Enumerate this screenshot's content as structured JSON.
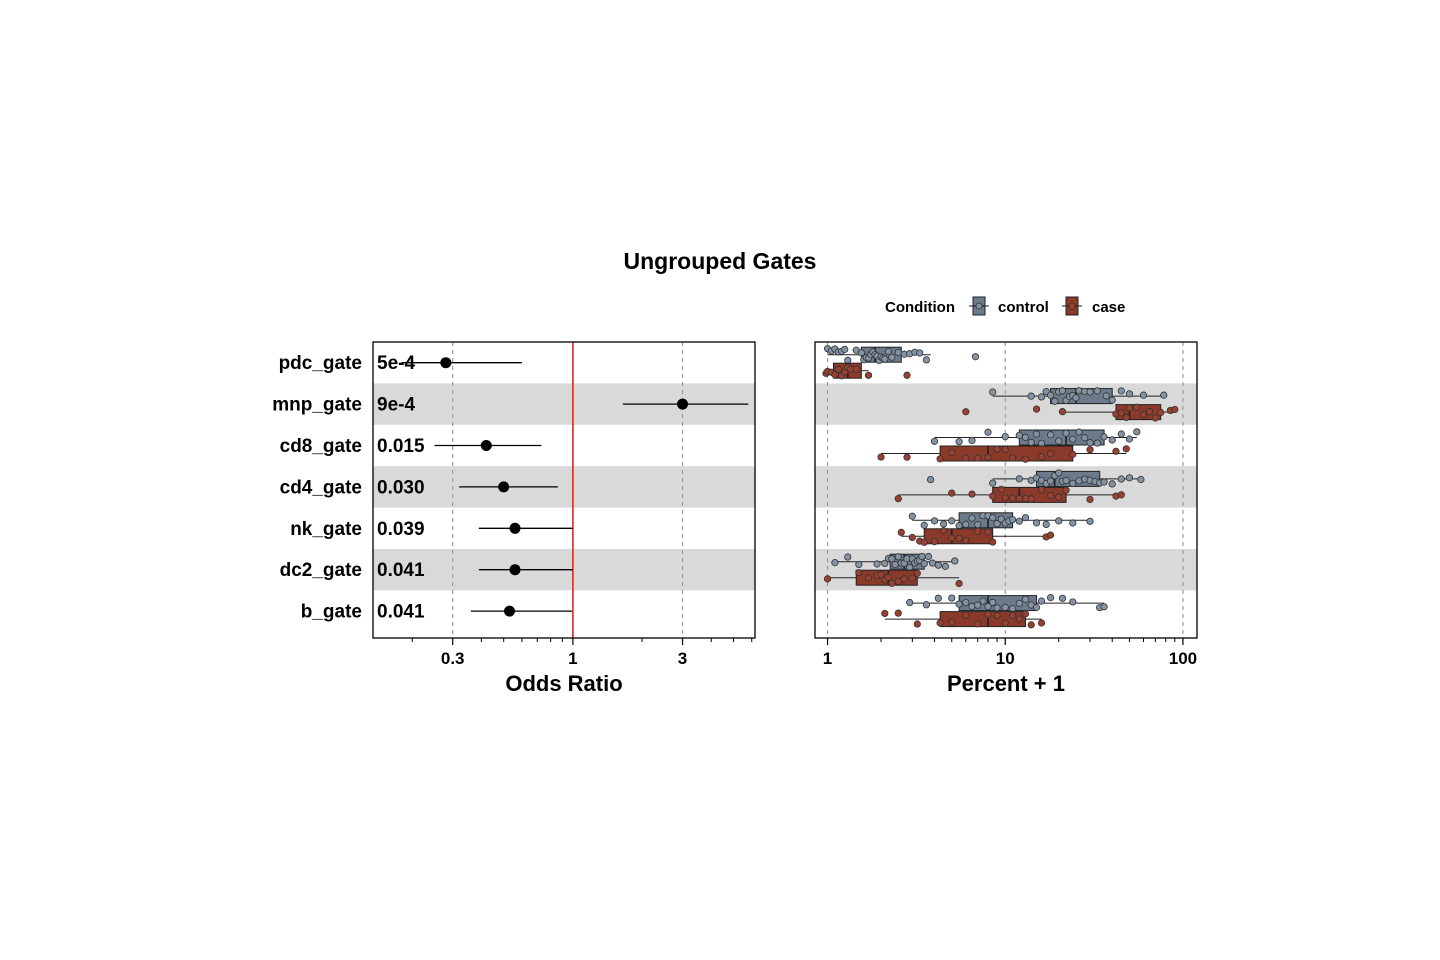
{
  "title": "Ungrouped Gates",
  "legend": {
    "title": "Condition",
    "items": [
      {
        "label": "control",
        "color": "#6b7b8c"
      },
      {
        "label": "case",
        "color": "#8b3a2a"
      }
    ]
  },
  "colors": {
    "control_fill": "#6b7b8c",
    "control_point": "#8393a4",
    "case_fill": "#8b3a2a",
    "case_point": "#9a4030",
    "reference_line": "#e8231d",
    "band": "#d9d9d9"
  },
  "chart_data": [
    {
      "type": "forest",
      "xlabel": "Odds Ratio",
      "x_scale": "log",
      "xlim": [
        0.135,
        6.2
      ],
      "xticks": [
        {
          "value": 0.3,
          "label": "0.3"
        },
        {
          "value": 1,
          "label": "1"
        },
        {
          "value": 3,
          "label": "3"
        }
      ],
      "reference_value": 1,
      "categories": [
        "pdc_gate",
        "mnp_gate",
        "cd8_gate",
        "cd4_gate",
        "nk_gate",
        "dc2_gate",
        "b_gate"
      ],
      "pvalues": [
        "5e-4",
        "9e-4",
        "0.015",
        "0.030",
        "0.039",
        "0.041",
        "0.041"
      ],
      "estimates": [
        0.28,
        3.0,
        0.42,
        0.5,
        0.56,
        0.56,
        0.53
      ],
      "ci_low": [
        0.18,
        1.65,
        0.25,
        0.32,
        0.39,
        0.39,
        0.36
      ],
      "ci_high": [
        0.6,
        5.8,
        0.73,
        0.86,
        1.0,
        1.0,
        0.99
      ],
      "band_rows": [
        "mnp_gate",
        "cd4_gate",
        "dc2_gate"
      ],
      "grid": true
    },
    {
      "type": "boxplot",
      "xlabel": "Percent + 1",
      "x_scale": "log",
      "xlim": [
        0.85,
        120
      ],
      "xticks": [
        {
          "value": 1,
          "label": "1"
        },
        {
          "value": 10,
          "label": "10"
        },
        {
          "value": 100,
          "label": "100"
        }
      ],
      "categories": [
        "pdc_gate",
        "mnp_gate",
        "cd8_gate",
        "cd4_gate",
        "nk_gate",
        "dc2_gate",
        "b_gate"
      ],
      "series": [
        {
          "name": "control",
          "boxes": [
            {
              "min": 1.0,
              "q1": 1.55,
              "median": 1.85,
              "q3": 2.6,
              "max": 3.8
            },
            {
              "min": 8.5,
              "q1": 18,
              "median": 25,
              "q3": 40,
              "max": 78
            },
            {
              "min": 4.0,
              "q1": 12,
              "median": 22,
              "q3": 36,
              "max": 55
            },
            {
              "min": 8.5,
              "q1": 15,
              "median": 19,
              "q3": 34,
              "max": 58
            },
            {
              "min": 3.0,
              "q1": 5.5,
              "median": 8,
              "q3": 11,
              "max": 30
            },
            {
              "min": 1.1,
              "q1": 2.25,
              "median": 2.7,
              "q3": 3.5,
              "max": 5.2
            },
            {
              "min": 2.9,
              "q1": 5.5,
              "median": 8,
              "q3": 15,
              "max": 36
            }
          ],
          "points": [
            [
              1.0,
              1.05,
              1.1,
              1.15,
              1.2,
              1.25,
              1.3,
              1.45,
              1.55,
              1.6,
              1.65,
              1.7,
              1.75,
              1.8,
              1.85,
              1.9,
              1.95,
              2.0,
              2.05,
              2.1,
              2.2,
              2.3,
              2.5,
              2.7,
              2.9,
              3.1,
              3.3,
              3.6,
              6.8
            ],
            [
              8.5,
              14,
              16,
              17,
              18,
              19,
              20,
              21,
              22,
              23,
              24,
              25,
              26,
              28,
              30,
              33,
              37,
              40,
              45,
              50,
              60,
              78
            ],
            [
              4.0,
              5.5,
              6.5,
              8,
              10,
              12,
              13,
              14,
              15,
              16,
              18,
              20,
              22,
              24,
              26,
              28,
              30,
              33,
              36,
              40,
              45,
              50,
              55
            ],
            [
              3.8,
              8.5,
              12,
              14,
              15,
              16,
              17,
              18,
              19,
              20,
              21,
              22,
              24,
              26,
              28,
              30,
              32,
              34,
              36,
              40,
              45,
              50,
              58
            ],
            [
              3.0,
              3.5,
              4.0,
              4.5,
              5.0,
              5.5,
              6.0,
              6.5,
              7.0,
              7.5,
              8.0,
              8.5,
              9.0,
              9.5,
              10,
              10.5,
              11,
              12,
              13,
              15,
              17,
              20,
              24,
              30
            ],
            [
              1.1,
              1.3,
              1.5,
              1.9,
              2.1,
              2.2,
              2.3,
              2.4,
              2.5,
              2.6,
              2.7,
              2.8,
              2.9,
              3.0,
              3.1,
              3.2,
              3.3,
              3.4,
              3.5,
              3.7,
              3.9,
              4.2,
              4.6,
              5.2
            ],
            [
              2.9,
              3.6,
              4.2,
              5.0,
              5.5,
              6.0,
              6.5,
              7.0,
              7.5,
              8.0,
              8.5,
              9.0,
              10,
              11,
              12,
              13,
              14,
              15,
              16,
              18,
              21,
              24,
              34,
              36
            ]
          ]
        },
        {
          "name": "case",
          "boxes": [
            {
              "min": 0.98,
              "q1": 1.08,
              "median": 1.3,
              "q3": 1.55,
              "max": 1.7
            },
            {
              "min": 21,
              "q1": 42,
              "median": 50,
              "q3": 75,
              "max": 90
            },
            {
              "min": 2.0,
              "q1": 4.3,
              "median": 8,
              "q3": 24,
              "max": 48
            },
            {
              "min": 2.5,
              "q1": 8.5,
              "median": 12,
              "q3": 22,
              "max": 45
            },
            {
              "min": 2.6,
              "q1": 3.5,
              "median": 5,
              "q3": 8.5,
              "max": 18
            },
            {
              "min": 1.0,
              "q1": 1.45,
              "median": 2.2,
              "q3": 3.2,
              "max": 5.5
            },
            {
              "min": 2.1,
              "q1": 4.3,
              "median": 8,
              "q3": 13,
              "max": 16
            }
          ],
          "points": [
            [
              0.98,
              1.0,
              1.05,
              1.1,
              1.15,
              1.2,
              1.25,
              1.3,
              1.35,
              1.45,
              1.7,
              2.8
            ],
            [
              6,
              15,
              21,
              42,
              45,
              48,
              50,
              55,
              60,
              65,
              70,
              75,
              85,
              90
            ],
            [
              2.0,
              2.8,
              4.3,
              5,
              6,
              7,
              8,
              9,
              10,
              11,
              13,
              16,
              18,
              24,
              30,
              42,
              48
            ],
            [
              2.5,
              5,
              6.5,
              8.5,
              9.5,
              10,
              11,
              12,
              13,
              14,
              16,
              18,
              20,
              22,
              30,
              42,
              45
            ],
            [
              2.6,
              3.0,
              3.3,
              3.5,
              4.0,
              4.5,
              5.0,
              5.5,
              6.0,
              7.0,
              8.0,
              8.5,
              17,
              18
            ],
            [
              1.0,
              1.5,
              1.7,
              1.9,
              2.0,
              2.1,
              2.2,
              2.3,
              2.5,
              2.7,
              3.0,
              3.2,
              5.5
            ],
            [
              2.1,
              2.5,
              3.2,
              4.3,
              5,
              6,
              7,
              8,
              9,
              10,
              11,
              12,
              13,
              14,
              16
            ]
          ]
        }
      ],
      "band_rows": [
        "mnp_gate",
        "cd4_gate",
        "dc2_gate"
      ],
      "grid": true
    }
  ]
}
